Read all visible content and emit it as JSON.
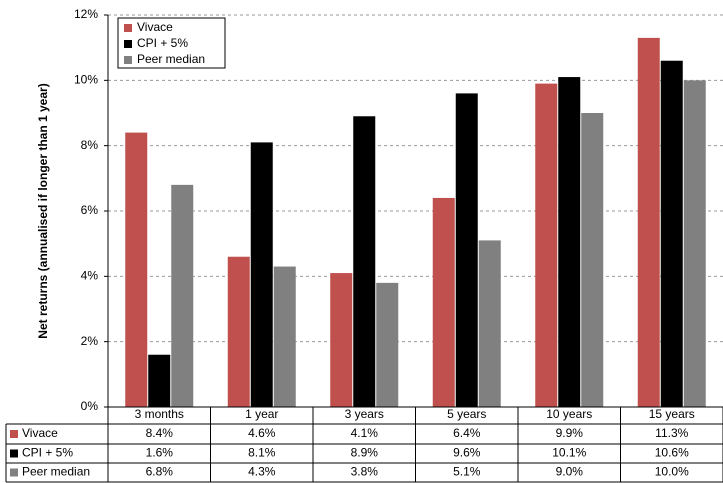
{
  "chart_data": {
    "type": "bar",
    "y_label": "Net returns (annualised if longer than 1 year)",
    "categories": [
      "3 months",
      "1 year",
      "3 years",
      "5 years",
      "10 years",
      "15 years"
    ],
    "series": [
      {
        "name": "Vivace",
        "color": "#c0504d",
        "values": [
          8.4,
          4.6,
          4.1,
          6.4,
          9.9,
          11.3
        ],
        "value_labels": [
          "8.4%",
          "4.6%",
          "4.1%",
          "6.4%",
          "9.9%",
          "11.3%"
        ]
      },
      {
        "name": "CPI + 5%",
        "color": "#000000",
        "values": [
          1.6,
          8.1,
          8.9,
          9.6,
          10.1,
          10.6
        ],
        "value_labels": [
          "1.6%",
          "8.1%",
          "8.9%",
          "9.6%",
          "10.1%",
          "10.6%"
        ]
      },
      {
        "name": "Peer median",
        "color": "#808080",
        "values": [
          6.8,
          4.3,
          3.8,
          5.1,
          9.0,
          10.0
        ],
        "value_labels": [
          "6.8%",
          "4.3%",
          "3.8%",
          "5.1%",
          "9.0%",
          "10.0%"
        ]
      }
    ],
    "ylim": [
      0,
      12
    ],
    "yticks": [
      {
        "value": 0,
        "label": "0%"
      },
      {
        "value": 2,
        "label": "2%"
      },
      {
        "value": 4,
        "label": "4%"
      },
      {
        "value": 6,
        "label": "6%"
      },
      {
        "value": 8,
        "label": "8%"
      },
      {
        "value": 10,
        "label": "10%"
      },
      {
        "value": 12,
        "label": "12%"
      }
    ],
    "grid": true,
    "legend": "top-left",
    "data_table": true
  }
}
